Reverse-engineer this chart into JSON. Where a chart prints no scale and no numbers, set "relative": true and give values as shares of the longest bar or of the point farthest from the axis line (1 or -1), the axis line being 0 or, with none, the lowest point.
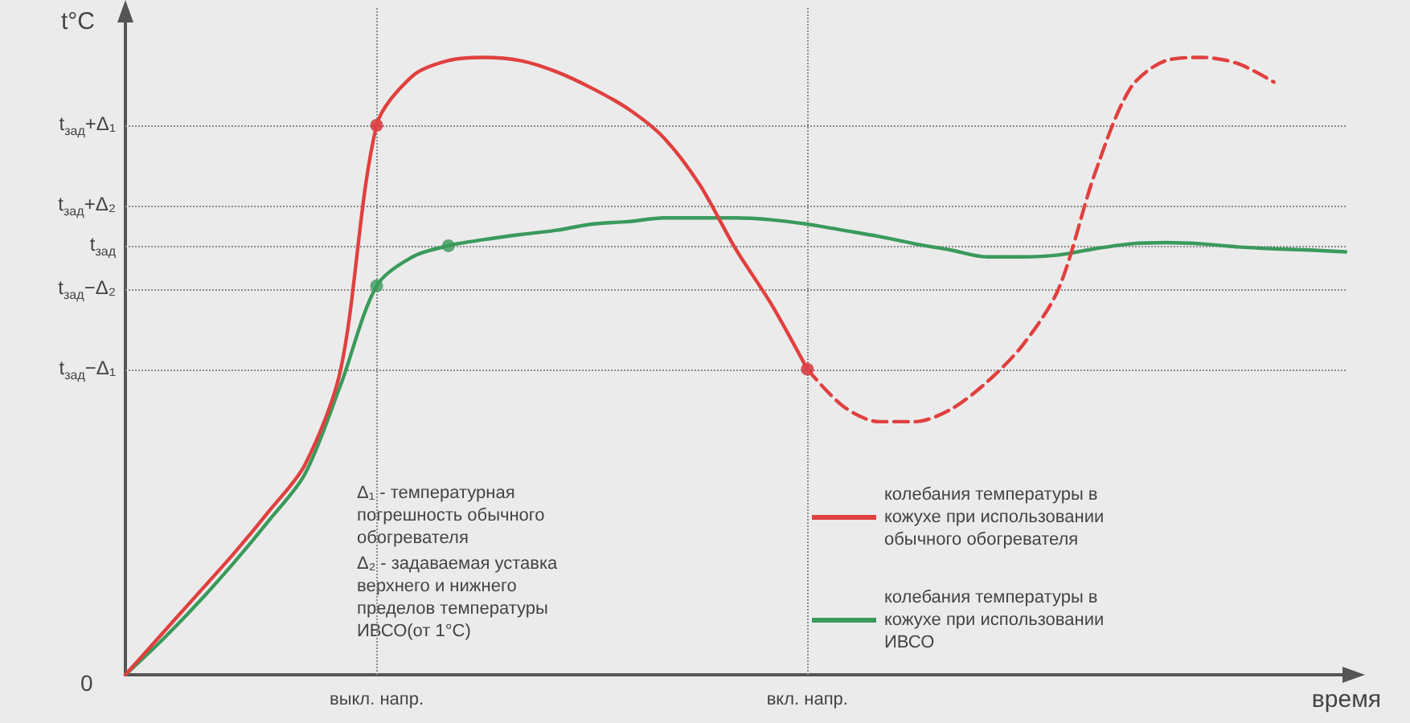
{
  "chart_data": {
    "type": "line",
    "relative": true,
    "xlabel": "время",
    "ylabel": "t°C",
    "legend": "bottom right",
    "grid": false,
    "marker": "none",
    "categories": [
      null,
      null,
      null,
      null,
      null,
      null,
      null,
      "выкл. напр.",
      null,
      null,
      null,
      null,
      null,
      null,
      null,
      null,
      null,
      null,
      null,
      "вкл. напр.",
      null,
      null,
      null,
      null,
      null,
      null,
      null,
      null,
      null,
      null,
      null,
      null,
      null,
      null,
      null
    ],
    "series": [
      {
        "name": "колебания температуры в кожухе при использовании обычного обогревателя",
        "color": "#e0403f",
        "values": [
          0,
          0.065,
          0.13,
          0.195,
          0.265,
          0.34,
          0.495,
          0.89,
          0.97,
          0.995,
          1.0,
          0.995,
          0.977,
          0.95,
          0.917,
          0.87,
          0.794,
          0.69,
          0.6,
          0.495,
          null,
          null,
          null,
          null,
          null,
          null,
          null,
          null,
          null,
          null,
          null,
          null,
          null,
          null,
          null
        ]
      },
      {
        "color": "#e0403f",
        "line_style": "dashed",
        "values": [
          null,
          null,
          null,
          null,
          null,
          null,
          null,
          null,
          null,
          null,
          null,
          null,
          null,
          null,
          null,
          null,
          null,
          null,
          null,
          0.495,
          0.435,
          0.41,
          0.41,
          0.43,
          0.474,
          0.534,
          0.625,
          0.81,
          0.95,
          0.995,
          1.0,
          0.99,
          0.96,
          null,
          null
        ]
      },
      {
        "name": "колебания температуры в кожухе при использовании ИВСО",
        "color": "#3a9a5c",
        "values": [
          0,
          0.055,
          0.115,
          0.18,
          0.25,
          0.325,
          0.47,
          0.63,
          0.677,
          0.695,
          0.705,
          0.713,
          0.72,
          0.73,
          0.734,
          0.74,
          0.74,
          0.74,
          0.737,
          0.73,
          0.72,
          0.71,
          0.698,
          0.688,
          0.677,
          0.677,
          0.68,
          0.69,
          0.698,
          0.7,
          0.698,
          0.693,
          0.69,
          0.688,
          0.685
        ]
      },
      {
        "type": "scatter",
        "marker": "circle",
        "color": "#d42a35",
        "values": [
          null,
          null,
          null,
          null,
          null,
          null,
          null,
          0.89,
          null,
          null,
          null,
          null,
          null,
          null,
          null,
          null,
          null,
          null,
          null,
          0.495,
          null,
          null,
          null,
          null,
          null,
          null,
          null,
          null,
          null,
          null,
          null,
          null,
          null,
          null,
          null
        ]
      },
      {
        "type": "scatter",
        "marker": "circle",
        "color": "#3a9a5c",
        "values": [
          null,
          null,
          null,
          null,
          null,
          null,
          null,
          0.63,
          null,
          0.695,
          null,
          null,
          null,
          null,
          null,
          null,
          null,
          null,
          null,
          null,
          null,
          null,
          null,
          null,
          null,
          null,
          null,
          null,
          null,
          null,
          null,
          null,
          null,
          null,
          null
        ]
      }
    ],
    "ref_lines": [
      {
        "axis": "y",
        "value": 0.89,
        "label": "t$_{зад}$+Δ₁",
        "line_style": "dotted"
      },
      {
        "axis": "y",
        "value": 0.76,
        "label": "t$_{зад}$+Δ₂",
        "line_style": "dotted"
      },
      {
        "axis": "y",
        "value": 0.695,
        "label": "t$_{зад}$",
        "line_style": "dotted"
      },
      {
        "axis": "y",
        "value": 0.625,
        "label": "t$_{зад}$−Δ₂",
        "line_style": "dotted"
      },
      {
        "axis": "y",
        "value": 0.495,
        "label": "t$_{зад}$−Δ₁",
        "line_style": "dotted"
      },
      {
        "axis": "x",
        "value": "выкл. напр.",
        "line_style": "dotted"
      },
      {
        "axis": "x",
        "value": "вкл. напр.",
        "line_style": "dotted"
      }
    ],
    "annotations": [
      "0",
      "Δ₁ - температурная погрешность обычного обогревателя",
      "Δ₂ - задаваемая уставка верхнего и нижнего пределов температуры ИВСО(от 1°C)"
    ]
  }
}
